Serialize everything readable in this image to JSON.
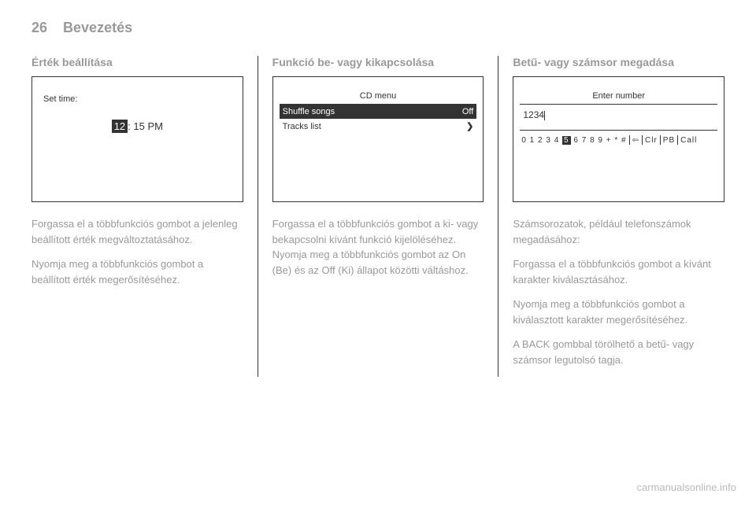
{
  "header": {
    "page_number": "26",
    "chapter": "Bevezetés"
  },
  "column1": {
    "title": "Érték beállítása",
    "screen": {
      "label": "Set time:",
      "hour_highlighted": "12",
      "rest": ": 15 PM"
    },
    "para1": "Forgassa el a többfunkciós gombot a jelenleg beállított érték megváltoztatásához.",
    "para2": "Nyomja meg a többfunkciós gombot a beállított érték megerősítéséhez."
  },
  "column2": {
    "title": "Funkció be- vagy kikapcsolása",
    "screen": {
      "header": "CD menu",
      "row1_left": "Shuffle songs",
      "row1_right": "Off",
      "row2_left": "Tracks list",
      "row2_right": "❯"
    },
    "para1": "Forgassa el a többfunkciós gombot a ki- vagy bekapcsolni kívánt funkció kijelöléséhez. Nyomja meg a többfunkciós gombot az On (Be) és az Off (Ki) állapot közötti váltáshoz."
  },
  "column3": {
    "title": "Betű- vagy számsor megadása",
    "screen": {
      "header": "Enter number",
      "number": "1234",
      "keys_before": "0 1 2 3 4",
      "key_highlighted": "5",
      "keys_after": "6 7 8 9 + * #",
      "key_del": "⇦",
      "key_clr": "Clr",
      "key_pb": "PB",
      "key_call": "Call"
    },
    "para1": "Számsorozatok, például telefonszámok megadásához:",
    "para2": "Forgassa el a többfunkciós gombot a kívánt karakter kiválasztásához.",
    "para3": "Nyomja meg a többfunkciós gombot a kiválasztott karakter megerősítéséhez.",
    "para4": "A BACK gombbal törölhető a betű- vagy számsor legutolsó tagja."
  },
  "watermark": "carmanualsonline.info",
  "colors": {
    "text_main": "#333333",
    "text_faded": "#999999",
    "background": "#ffffff",
    "highlight_bg": "#333333",
    "highlight_fg": "#ffffff",
    "watermark": "#bbbbbb"
  }
}
